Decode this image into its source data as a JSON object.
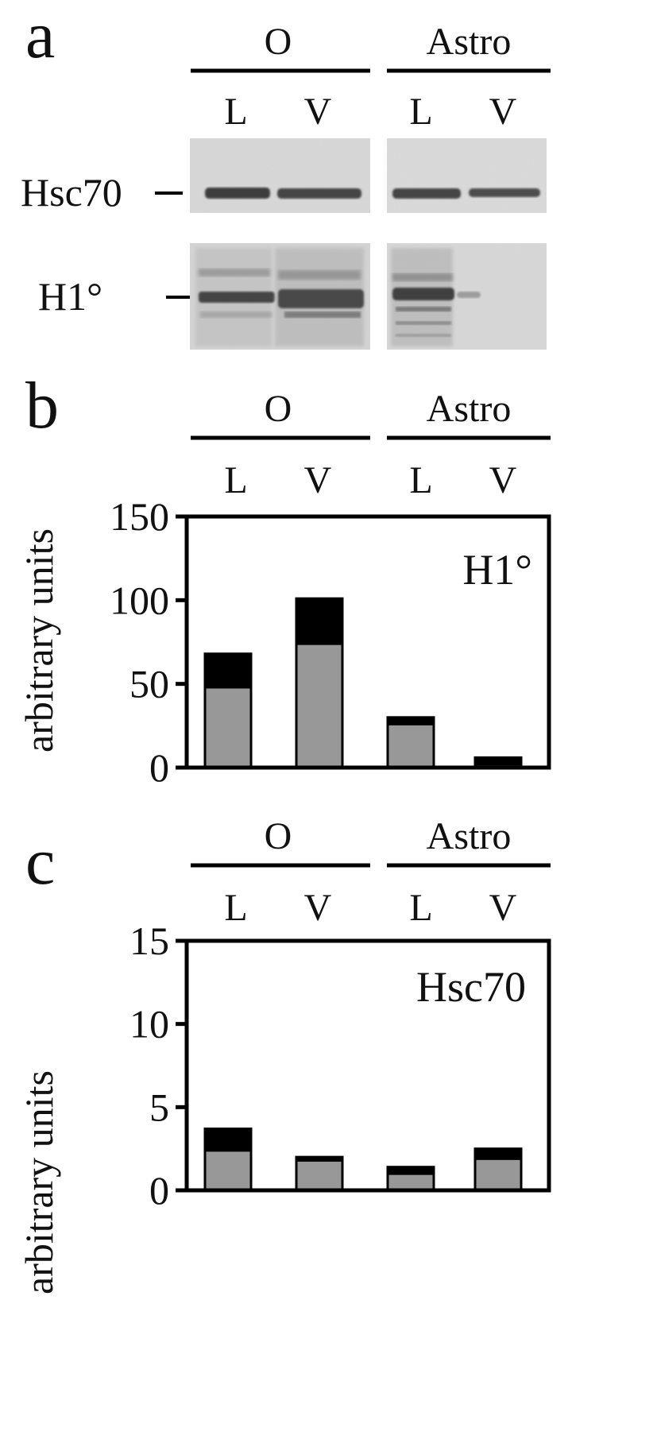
{
  "panels": {
    "a": {
      "letter": "a",
      "group_labels": [
        "O",
        "Astro"
      ],
      "lane_labels": [
        "L",
        "V",
        "L",
        "V"
      ],
      "blot_labels": [
        "Hsc70",
        "H1°"
      ]
    },
    "b": {
      "letter": "b",
      "group_labels": [
        "O",
        "Astro"
      ],
      "lane_labels": [
        "L",
        "V",
        "L",
        "V"
      ]
    },
    "c": {
      "letter": "c",
      "group_labels": [
        "O",
        "Astro"
      ],
      "lane_labels": [
        "L",
        "V",
        "L",
        "V"
      ]
    }
  },
  "colors": {
    "lower_segment": "#989898",
    "upper_segment": "#000000",
    "axis": "#000000"
  },
  "chart_data": [
    {
      "type": "bar",
      "stacked": true,
      "annotation": "H1°",
      "ylabel": "arbitrary units",
      "categories": [
        "L",
        "V",
        "L",
        "V"
      ],
      "groups": [
        {
          "name": "O",
          "categories": [
            "L",
            "V"
          ]
        },
        {
          "name": "Astro",
          "categories": [
            "L",
            "V"
          ]
        }
      ],
      "series": [
        {
          "values": [
            48,
            74,
            26,
            2
          ],
          "color": "#989898"
        },
        {
          "values": [
            20,
            27,
            4,
            4
          ],
          "color": "#000000"
        }
      ],
      "ylim": [
        0,
        150
      ],
      "yticks": [
        0,
        50,
        100,
        150
      ],
      "grid": false
    },
    {
      "type": "bar",
      "stacked": true,
      "annotation": "Hsc70",
      "ylabel": "arbitrary units",
      "categories": [
        "L",
        "V",
        "L",
        "V"
      ],
      "groups": [
        {
          "name": "O",
          "categories": [
            "L",
            "V"
          ]
        },
        {
          "name": "Astro",
          "categories": [
            "L",
            "V"
          ]
        }
      ],
      "series": [
        {
          "values": [
            2.4,
            1.8,
            1.0,
            1.9
          ],
          "color": "#989898"
        },
        {
          "values": [
            1.3,
            0.2,
            0.4,
            0.6
          ],
          "color": "#000000"
        }
      ],
      "ylim": [
        0,
        15
      ],
      "yticks": [
        0,
        5,
        10,
        15
      ],
      "grid": false
    }
  ]
}
